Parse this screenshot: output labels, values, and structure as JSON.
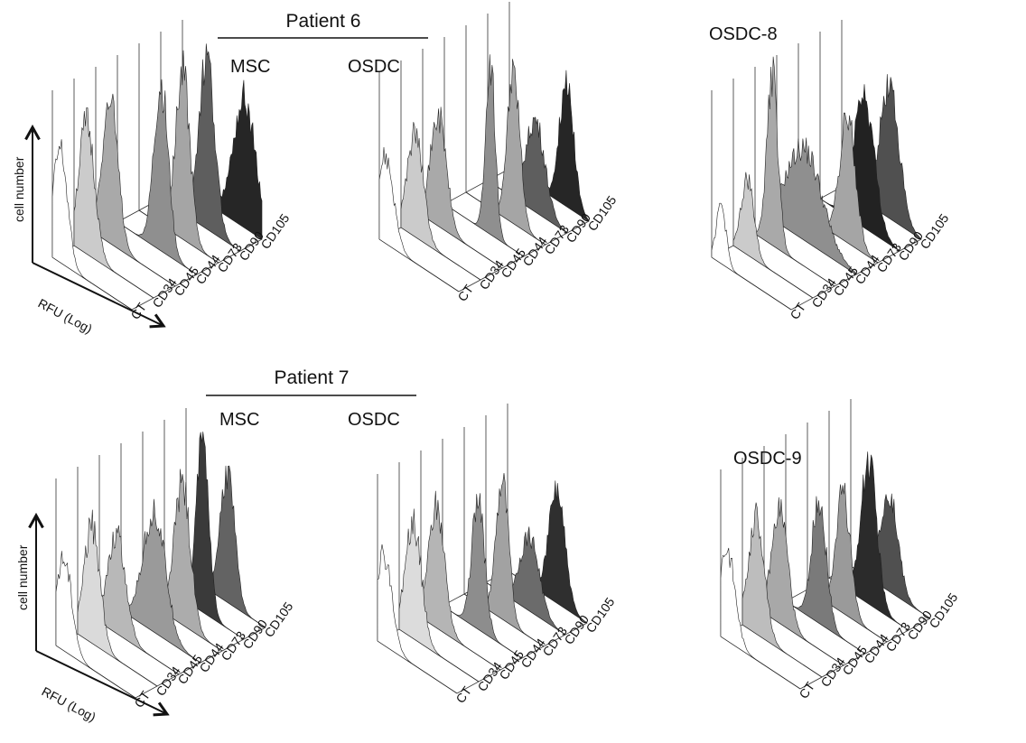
{
  "figure": {
    "rows": [
      {
        "group_title": "Patient 6",
        "panels": [
          {
            "label": "MSC",
            "label_xy": [
              255,
              80
            ],
            "show_axes": true,
            "axis_labels": {
              "y": "cell number",
              "x": "RFU (Log)"
            },
            "histograms": [
              {
                "marker": "CT",
                "fill": "#ffffff",
                "peak": 0.68,
                "mode": 0.1,
                "width": 0.09
              },
              {
                "marker": "CD34",
                "fill": "#cbcbcb",
                "peak": 0.78,
                "mode": 0.16,
                "width": 0.1
              },
              {
                "marker": "CD45",
                "fill": "#a9a9a9",
                "peak": 0.85,
                "mode": 0.18,
                "width": 0.1
              },
              {
                "marker": "CD44",
                "fill": "#8f8f8f",
                "peak": 1.0,
                "mode": 0.55,
                "width": 0.09
              },
              {
                "marker": "CD73",
                "fill": "#a5a5a5",
                "peak": 1.0,
                "mode": 0.55,
                "width": 0.09
              },
              {
                "marker": "CD90",
                "fill": "#5e5e5e",
                "peak": 1.0,
                "mode": 0.58,
                "width": 0.1
              },
              {
                "marker": "CD105",
                "fill": "#262626",
                "peak": 0.78,
                "mode": 0.78,
                "width": 0.14
              }
            ]
          },
          {
            "label": "OSDC",
            "label_xy": [
              385,
              80
            ],
            "show_axes": false,
            "histograms": [
              {
                "marker": "CT",
                "fill": "#ffffff",
                "peak": 0.52,
                "mode": 0.08,
                "width": 0.1
              },
              {
                "marker": "CD34",
                "fill": "#cbcbcb",
                "peak": 0.62,
                "mode": 0.18,
                "width": 0.1
              },
              {
                "marker": "CD45",
                "fill": "#a9a9a9",
                "peak": 0.66,
                "mode": 0.2,
                "width": 0.1
              },
              {
                "marker": "CD44",
                "fill": "#8f8f8f",
                "peak": 1.0,
                "mode": 0.58,
                "width": 0.06
              },
              {
                "marker": "CD73",
                "fill": "#a5a5a5",
                "peak": 0.9,
                "mode": 0.6,
                "width": 0.08
              },
              {
                "marker": "CD90",
                "fill": "#5e5e5e",
                "peak": 0.55,
                "mode": 0.6,
                "width": 0.12
              },
              {
                "marker": "CD105",
                "fill": "#262626",
                "peak": 0.75,
                "mode": 0.72,
                "width": 0.09
              }
            ]
          },
          {
            "label": "OSDC-8",
            "label_xy": [
              785,
              44
            ],
            "show_axes": false,
            "histograms": [
              {
                "marker": "CT",
                "fill": "#ffffff",
                "peak": 0.35,
                "mode": 0.12,
                "width": 0.06
              },
              {
                "marker": "CD34",
                "fill": "#cbcbcb",
                "peak": 0.45,
                "mode": 0.18,
                "width": 0.08
              },
              {
                "marker": "CD45",
                "fill": "#a9a9a9",
                "peak": 1.0,
                "mode": 0.22,
                "width": 0.07
              },
              {
                "marker": "CD44",
                "fill": "#8f8f8f",
                "peak": 0.55,
                "mode": 0.35,
                "width": 0.22
              },
              {
                "marker": "CD73",
                "fill": "#a5a5a5",
                "peak": 0.75,
                "mode": 0.62,
                "width": 0.1
              },
              {
                "marker": "CD90",
                "fill": "#222222",
                "peak": 0.8,
                "mode": 0.55,
                "width": 0.13
              },
              {
                "marker": "CD105",
                "fill": "#505050",
                "peak": 0.8,
                "mode": 0.6,
                "width": 0.12
              }
            ]
          }
        ]
      },
      {
        "group_title": "Patient 7",
        "panels": [
          {
            "label": "MSC",
            "label_xy": [
              243,
              471
            ],
            "show_axes": true,
            "axis_labels": {
              "y": "cell number",
              "x": "RFU (Log)"
            },
            "histograms": [
              {
                "marker": "CT",
                "fill": "#ffffff",
                "peak": 0.55,
                "mode": 0.1,
                "width": 0.1
              },
              {
                "marker": "CD34",
                "fill": "#dadada",
                "peak": 0.7,
                "mode": 0.18,
                "width": 0.1
              },
              {
                "marker": "CD45",
                "fill": "#b8b8b8",
                "peak": 0.6,
                "mode": 0.22,
                "width": 0.11
              },
              {
                "marker": "CD44",
                "fill": "#9a9a9a",
                "peak": 0.72,
                "mode": 0.42,
                "width": 0.14
              },
              {
                "marker": "CD73",
                "fill": "#acacac",
                "peak": 0.85,
                "mode": 0.5,
                "width": 0.1
              },
              {
                "marker": "CD90",
                "fill": "#3a3a3a",
                "peak": 1.0,
                "mode": 0.48,
                "width": 0.08
              },
              {
                "marker": "CD105",
                "fill": "#636363",
                "peak": 0.78,
                "mode": 0.52,
                "width": 0.09
              }
            ]
          },
          {
            "label": "OSDC",
            "label_xy": [
              385,
              471
            ],
            "show_axes": false,
            "histograms": [
              {
                "marker": "CT",
                "fill": "#ffffff",
                "peak": 0.55,
                "mode": 0.08,
                "width": 0.1
              },
              {
                "marker": "CD34",
                "fill": "#dcdcdc",
                "peak": 0.7,
                "mode": 0.18,
                "width": 0.1
              },
              {
                "marker": "CD45",
                "fill": "#b5b5b5",
                "peak": 0.72,
                "mode": 0.2,
                "width": 0.1
              },
              {
                "marker": "CD44",
                "fill": "#8d8d8d",
                "peak": 0.78,
                "mode": 0.45,
                "width": 0.08
              },
              {
                "marker": "CD73",
                "fill": "#a2a2a2",
                "peak": 0.82,
                "mode": 0.48,
                "width": 0.08
              },
              {
                "marker": "CD90",
                "fill": "#6b6b6b",
                "peak": 0.45,
                "mode": 0.55,
                "width": 0.12
              },
              {
                "marker": "CD105",
                "fill": "#2f2f2f",
                "peak": 0.68,
                "mode": 0.62,
                "width": 0.1
              }
            ]
          },
          {
            "label": "OSDC-9",
            "label_xy": [
              812,
              514
            ],
            "show_axes": false,
            "histograms": [
              {
                "marker": "CT",
                "fill": "#ffffff",
                "peak": 0.55,
                "mode": 0.08,
                "width": 0.1
              },
              {
                "marker": "CD34",
                "fill": "#bdbdbd",
                "peak": 0.7,
                "mode": 0.18,
                "width": 0.1
              },
              {
                "marker": "CD45",
                "fill": "#a8a8a8",
                "peak": 0.68,
                "mode": 0.2,
                "width": 0.1
              },
              {
                "marker": "CD44",
                "fill": "#7a7a7a",
                "peak": 0.75,
                "mode": 0.42,
                "width": 0.09
              },
              {
                "marker": "CD73",
                "fill": "#9a9a9a",
                "peak": 0.72,
                "mode": 0.45,
                "width": 0.09
              },
              {
                "marker": "CD90",
                "fill": "#2b2b2b",
                "peak": 0.85,
                "mode": 0.5,
                "width": 0.1
              },
              {
                "marker": "CD105",
                "fill": "#505050",
                "peak": 0.6,
                "mode": 0.48,
                "width": 0.11
              }
            ]
          }
        ]
      }
    ]
  },
  "chart_data": [
    {
      "type": "area",
      "group": "Patient 6",
      "panel": "MSC",
      "axis_labels": {
        "y": "cell number",
        "x": "RFU (Log)"
      },
      "x_scale": "log",
      "series": [
        {
          "name": "CT"
        },
        {
          "name": "CD34"
        },
        {
          "name": "CD45"
        },
        {
          "name": "CD44"
        },
        {
          "name": "CD73"
        },
        {
          "name": "CD90"
        },
        {
          "name": "CD105"
        }
      ]
    },
    {
      "type": "area",
      "group": "Patient 6",
      "panel": "OSDC",
      "x_scale": "log",
      "series": [
        {
          "name": "CT"
        },
        {
          "name": "CD34"
        },
        {
          "name": "CD45"
        },
        {
          "name": "CD44"
        },
        {
          "name": "CD73"
        },
        {
          "name": "CD90"
        },
        {
          "name": "CD105"
        }
      ]
    },
    {
      "type": "area",
      "panel": "OSDC-8",
      "x_scale": "log",
      "series": [
        {
          "name": "CT"
        },
        {
          "name": "CD34"
        },
        {
          "name": "CD45"
        },
        {
          "name": "CD44"
        },
        {
          "name": "CD73"
        },
        {
          "name": "CD90"
        },
        {
          "name": "CD105"
        }
      ]
    },
    {
      "type": "area",
      "group": "Patient 7",
      "panel": "MSC",
      "axis_labels": {
        "y": "cell number",
        "x": "RFU (Log)"
      },
      "x_scale": "log",
      "series": [
        {
          "name": "CT"
        },
        {
          "name": "CD34"
        },
        {
          "name": "CD45"
        },
        {
          "name": "CD44"
        },
        {
          "name": "CD73"
        },
        {
          "name": "CD90"
        },
        {
          "name": "CD105"
        }
      ]
    },
    {
      "type": "area",
      "group": "Patient 7",
      "panel": "OSDC",
      "x_scale": "log",
      "series": [
        {
          "name": "CT"
        },
        {
          "name": "CD34"
        },
        {
          "name": "CD45"
        },
        {
          "name": "CD44"
        },
        {
          "name": "CD73"
        },
        {
          "name": "CD90"
        },
        {
          "name": "CD105"
        }
      ]
    },
    {
      "type": "area",
      "panel": "OSDC-9",
      "x_scale": "log",
      "series": [
        {
          "name": "CT"
        },
        {
          "name": "CD34"
        },
        {
          "name": "CD45"
        },
        {
          "name": "CD44"
        },
        {
          "name": "CD73"
        },
        {
          "name": "CD90"
        },
        {
          "name": "CD105"
        }
      ]
    }
  ]
}
